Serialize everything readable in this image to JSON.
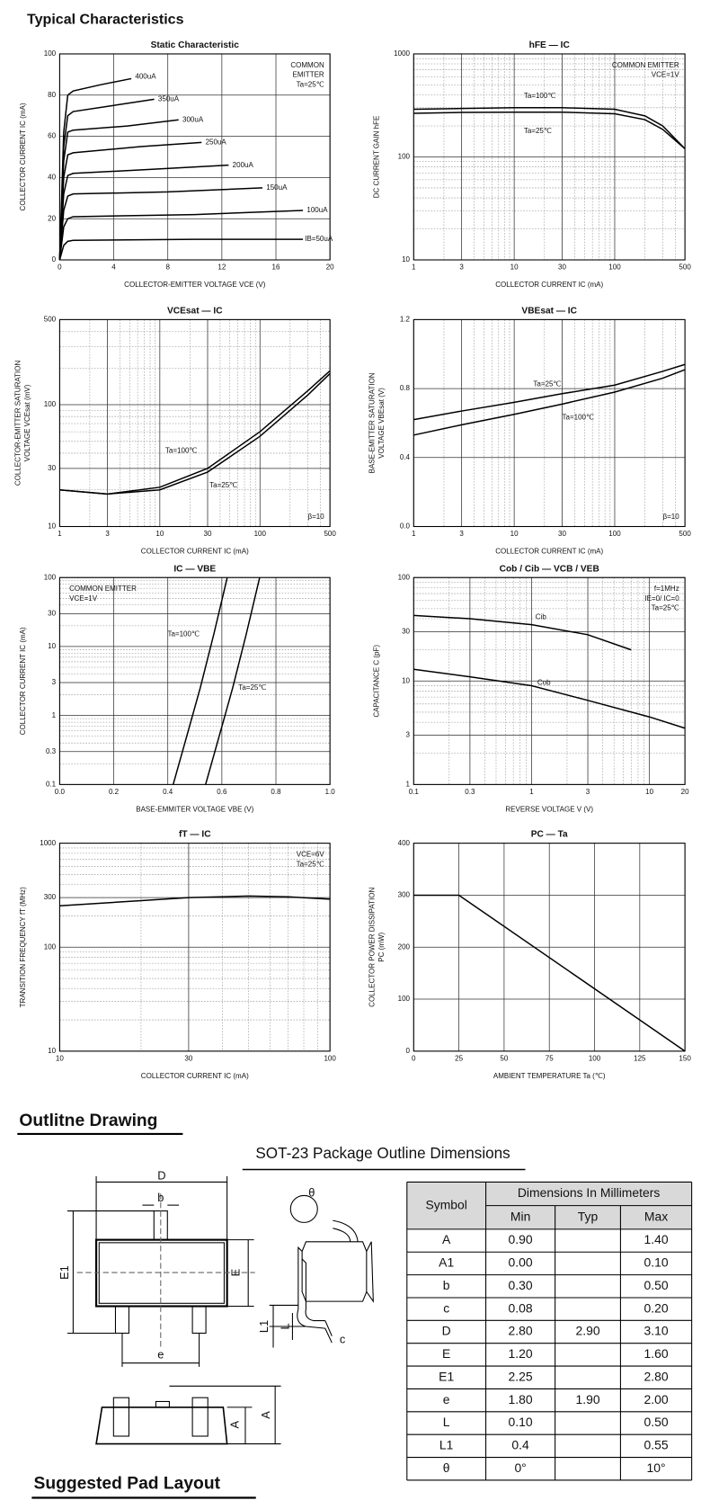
{
  "header": {
    "title": "Typical Characteristics"
  },
  "chart_data": [
    {
      "type": "line",
      "title": "Static Characteristic",
      "xlabel": "COLLECTOR-EMITTER VOLTAGE VCE (V)",
      "ylabel": [
        "COLLECTOR CURRENT IC (mA)"
      ],
      "xlim": [
        0,
        20
      ],
      "xticks": [
        0,
        4,
        8,
        12,
        16,
        20
      ],
      "ylim": [
        0,
        100
      ],
      "yticks": [
        0,
        20,
        40,
        60,
        80,
        100
      ],
      "xlog": false,
      "ylog": false,
      "grid": true,
      "annotations": [
        "COMMON",
        "EMITTER",
        "Ta=25℃"
      ],
      "annotation_loc": "upper right",
      "series": [
        {
          "name": "400uA",
          "color": "#000000",
          "x": [
            0,
            0.3,
            0.6,
            1,
            3,
            5.3
          ],
          "values": [
            0,
            62,
            80,
            82,
            85,
            88
          ]
        },
        {
          "name": "350uA",
          "color": "#000000",
          "x": [
            0,
            0.3,
            0.6,
            1,
            4,
            7
          ],
          "values": [
            0,
            55,
            70,
            72,
            75,
            78
          ]
        },
        {
          "name": "300uA",
          "color": "#000000",
          "x": [
            0,
            0.3,
            0.6,
            1,
            5,
            8.8
          ],
          "values": [
            0,
            48,
            62,
            63,
            65,
            68
          ]
        },
        {
          "name": "250uA",
          "color": "#000000",
          "x": [
            0,
            0.3,
            0.6,
            1,
            6,
            10.5
          ],
          "values": [
            0,
            40,
            51,
            52,
            55,
            57
          ]
        },
        {
          "name": "200uA",
          "color": "#000000",
          "x": [
            0,
            0.3,
            0.6,
            1,
            7,
            12.5
          ],
          "values": [
            0,
            32,
            41,
            42,
            44,
            46
          ]
        },
        {
          "name": "150uA",
          "color": "#000000",
          "x": [
            0,
            0.3,
            0.6,
            1,
            8,
            15
          ],
          "values": [
            0,
            24,
            31,
            32,
            33,
            35
          ]
        },
        {
          "name": "100uA",
          "color": "#000000",
          "x": [
            0,
            0.3,
            0.6,
            1,
            10,
            18
          ],
          "values": [
            0,
            16,
            20,
            21,
            22,
            24
          ]
        },
        {
          "name": "IB=50uA",
          "color": "#000000",
          "x": [
            0,
            0.3,
            0.6,
            1,
            10,
            18
          ],
          "values": [
            0,
            7,
            9,
            9.5,
            10,
            10
          ]
        }
      ]
    },
    {
      "type": "line",
      "title": "hFE — IC",
      "xlabel": "COLLECTOR CURRENT IC (mA)",
      "ylabel": [
        "DC CURRENT GAIN hFE"
      ],
      "xlim": [
        1,
        500
      ],
      "xticks": [
        1,
        3,
        10,
        30,
        100,
        500
      ],
      "ylim": [
        10,
        1000
      ],
      "yticks": [
        10,
        100,
        1000
      ],
      "xlog": true,
      "ylog": true,
      "grid": true,
      "annotations": [
        "COMMON EMITTER",
        "VCE=1V"
      ],
      "annotation_loc": "upper right",
      "series": [
        {
          "name": "Ta=100℃",
          "color": "#000000",
          "x": [
            1,
            3,
            10,
            30,
            100,
            200,
            300,
            500
          ],
          "values": [
            290,
            295,
            300,
            300,
            290,
            250,
            200,
            120
          ]
        },
        {
          "name": "Ta=25℃",
          "color": "#000000",
          "x": [
            1,
            3,
            10,
            30,
            100,
            200,
            300,
            500
          ],
          "values": [
            265,
            270,
            272,
            272,
            262,
            230,
            185,
            120
          ]
        }
      ]
    },
    {
      "type": "line",
      "title": "VCEsat — IC",
      "xlabel": "COLLECTOR CURRENT IC (mA)",
      "ylabel": [
        "COLLECTOR-EMITTER SATURATION",
        "VOLTAGE VCEsat (mV)"
      ],
      "xlim": [
        1,
        500
      ],
      "xticks": [
        1,
        3,
        10,
        30,
        100,
        500
      ],
      "ylim": [
        10,
        500
      ],
      "yticks": [
        10,
        30,
        100,
        500
      ],
      "xlog": true,
      "ylog": true,
      "grid": true,
      "annotations": [
        "β=10"
      ],
      "annotation_loc": "lower right",
      "series": [
        {
          "name": "Ta=100℃",
          "color": "#000000",
          "x": [
            1,
            3,
            10,
            30,
            100,
            300,
            500
          ],
          "values": [
            20,
            18.5,
            21,
            30,
            60,
            130,
            190
          ]
        },
        {
          "name": "Ta=25℃",
          "color": "#000000",
          "x": [
            1,
            3,
            10,
            30,
            100,
            300,
            500
          ],
          "values": [
            20,
            18.5,
            20,
            28,
            55,
            120,
            180
          ]
        }
      ]
    },
    {
      "type": "line",
      "title": "VBEsat — IC",
      "xlabel": "COLLECTOR CURRENT IC (mA)",
      "ylabel": [
        "BASE-EMITTER SATURATION",
        "VOLTAGE VBEsat (V)"
      ],
      "xlim": [
        1,
        500
      ],
      "xticks": [
        1,
        3,
        10,
        30,
        100,
        500
      ],
      "ylim": [
        0,
        1.2
      ],
      "yticks": [
        {
          "value": 0,
          "label": "0.0"
        },
        0.4,
        0.8,
        1.2
      ],
      "xlog": true,
      "ylog": false,
      "grid": true,
      "annotations": [
        "β=10"
      ],
      "annotation_loc": "lower right",
      "series": [
        {
          "name": "Ta=25℃",
          "color": "#000000",
          "x": [
            1,
            3,
            10,
            30,
            100,
            300,
            500
          ],
          "values": [
            0.62,
            0.67,
            0.72,
            0.77,
            0.82,
            0.9,
            0.94
          ]
        },
        {
          "name": "Ta=100℃",
          "color": "#000000",
          "x": [
            1,
            3,
            10,
            30,
            100,
            300,
            500
          ],
          "values": [
            0.53,
            0.59,
            0.65,
            0.71,
            0.78,
            0.86,
            0.91
          ]
        }
      ]
    },
    {
      "type": "line",
      "title": "IC — VBE",
      "xlabel": "BASE-EMMITER VOLTAGE VBE (V)",
      "ylabel": [
        "COLLECTOR CURRENT IC (mA)"
      ],
      "xlim": [
        0,
        1
      ],
      "xticks": [
        {
          "value": 0,
          "label": "0.0"
        },
        0.2,
        0.4,
        0.6,
        0.8,
        {
          "value": 1,
          "label": "1.0"
        }
      ],
      "ylim": [
        0.1,
        100
      ],
      "yticks": [
        0.1,
        0.3,
        1,
        3,
        10,
        30,
        100
      ],
      "xlog": false,
      "ylog": true,
      "grid": true,
      "annotations": [
        "COMMON EMITTER",
        "VCE=1V"
      ],
      "annotation_loc": "upper left",
      "series": [
        {
          "name": "Ta=100℃",
          "color": "#000000",
          "x": [
            0.42,
            0.47,
            0.52,
            0.57,
            0.62
          ],
          "values": [
            0.1,
            0.5,
            2.5,
            15,
            100
          ]
        },
        {
          "name": "Ta=25℃",
          "color": "#000000",
          "x": [
            0.54,
            0.59,
            0.64,
            0.69,
            0.74
          ],
          "values": [
            0.1,
            0.5,
            2.5,
            15,
            100
          ]
        }
      ]
    },
    {
      "type": "line",
      "title": "Cob / Cib — VCB / VEB",
      "xlabel": "REVERSE VOLTAGE V (V)",
      "ylabel": [
        "CAPACITANCE C (pF)"
      ],
      "xlim": [
        0.1,
        20
      ],
      "xticks": [
        0.1,
        0.3,
        1,
        3,
        10,
        20
      ],
      "ylim": [
        1,
        100
      ],
      "yticks": [
        1,
        3,
        10,
        30,
        100
      ],
      "xlog": true,
      "ylog": true,
      "grid": true,
      "annotations": [
        "f=1MHz",
        "IE=0/ IC=0",
        "Ta=25℃"
      ],
      "annotation_loc": "upper right",
      "series": [
        {
          "name": "Cib",
          "color": "#000000",
          "x": [
            0.1,
            0.3,
            1,
            3,
            7
          ],
          "values": [
            43,
            40,
            35,
            28,
            20
          ]
        },
        {
          "name": "Cob",
          "color": "#000000",
          "x": [
            0.1,
            0.3,
            1,
            3,
            10,
            20
          ],
          "values": [
            13,
            11,
            9,
            6.5,
            4.5,
            3.5
          ]
        }
      ]
    },
    {
      "type": "line",
      "title": "fT — IC",
      "xlabel": "COLLECTOR CURRENT IC (mA)",
      "ylabel": [
        "TRANSITION FREQUENCY fT (MHz)"
      ],
      "xlim": [
        10,
        100
      ],
      "xticks": [
        10,
        30,
        100
      ],
      "ylim": [
        10,
        1000
      ],
      "yticks": [
        10,
        100,
        300,
        1000
      ],
      "xlog": true,
      "ylog": true,
      "grid": true,
      "annotations": [
        "VCE=6V",
        "Ta=25℃"
      ],
      "annotation_loc": "upper right",
      "series": [
        {
          "color": "#000000",
          "x": [
            10,
            20,
            30,
            50,
            70,
            100
          ],
          "values": [
            250,
            280,
            300,
            310,
            305,
            290
          ]
        }
      ]
    },
    {
      "type": "line",
      "title": "PC — Ta",
      "xlabel": "AMBIENT TEMPERATURE Ta (℃)",
      "ylabel": [
        "COLLECTOR POWER DISSIPATION",
        "PC (mW)"
      ],
      "xlim": [
        0,
        150
      ],
      "xticks": [
        0,
        25,
        50,
        75,
        100,
        125,
        150
      ],
      "ylim": [
        0,
        400
      ],
      "yticks": [
        0,
        100,
        200,
        300,
        400
      ],
      "xlog": false,
      "ylog": false,
      "grid": true,
      "series": [
        {
          "color": "#000000",
          "x": [
            0,
            25,
            150
          ],
          "values": [
            300,
            300,
            0
          ]
        }
      ]
    }
  ],
  "outline": {
    "title": "Outlitne Drawing",
    "subtitle": "SOT-23 Package Outline Dimensions",
    "labels": [
      "D",
      "b",
      "E1",
      "E",
      "e",
      "θ",
      "L1",
      "L",
      "c",
      "A",
      "A"
    ],
    "table": {
      "symbol_header": "Symbol",
      "group_header": "Dimensions In Millimeters",
      "columns": [
        "Min",
        "Typ",
        "Max"
      ],
      "rows": [
        [
          "A",
          "0.90",
          null,
          "1.40"
        ],
        [
          "A1",
          "0.00",
          null,
          "0.10"
        ],
        [
          "b",
          "0.30",
          null,
          "0.50"
        ],
        [
          "c",
          "0.08",
          null,
          "0.20"
        ],
        [
          "D",
          "2.80",
          "2.90",
          "3.10"
        ],
        [
          "E",
          "1.20",
          null,
          "1.60"
        ],
        [
          "E1",
          "2.25",
          null,
          "2.80"
        ],
        [
          "e",
          "1.80",
          "1.90",
          "2.00"
        ],
        [
          "L",
          "0.10",
          null,
          "0.50"
        ],
        [
          "L1",
          "0.4",
          null,
          "0.55"
        ],
        [
          "θ",
          "0°",
          null,
          "10°"
        ]
      ]
    }
  },
  "pad_layout": {
    "title": "Suggested Pad Layout"
  }
}
